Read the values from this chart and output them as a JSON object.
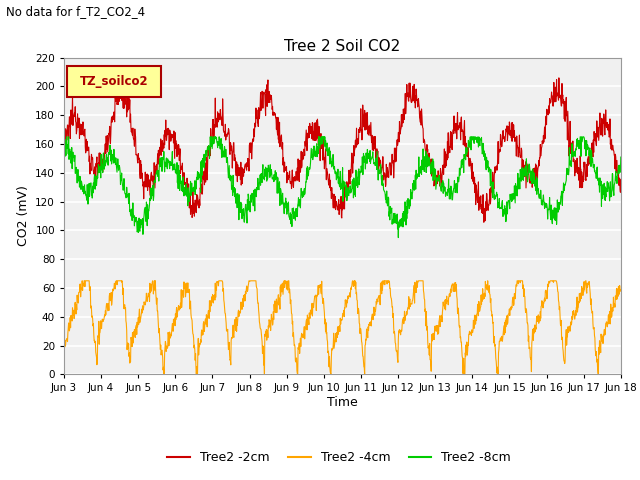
{
  "title": "Tree 2 Soil CO2",
  "suptitle": "No data for f_T2_CO2_4",
  "ylabel": "CO2 (mV)",
  "xlabel": "Time",
  "ylim": [
    0,
    220
  ],
  "yticks": [
    0,
    20,
    40,
    60,
    80,
    100,
    120,
    140,
    160,
    180,
    200,
    220
  ],
  "xtick_labels": [
    "Jun 3",
    "Jun 4",
    "Jun 5",
    "Jun 6",
    "Jun 7",
    "Jun 8",
    "Jun 9",
    "Jun 10",
    "Jun 11",
    "Jun 12",
    "Jun 13",
    "Jun 14",
    "Jun 15",
    "Jun 16",
    "Jun 17",
    "Jun 18"
  ],
  "legend_box_label": "TZ_soilco2",
  "legend_box_color": "#ffff99",
  "legend_box_edge_color": "#aa0000",
  "line_colors": [
    "#cc0000",
    "#ffa500",
    "#00cc00"
  ],
  "line_labels": [
    "Tree2 -2cm",
    "Tree2 -4cm",
    "Tree2 -8cm"
  ],
  "background_color": "#ffffff",
  "plot_bg_color": "#f0f0f0",
  "grid_color": "#ffffff",
  "n_points": 1440
}
